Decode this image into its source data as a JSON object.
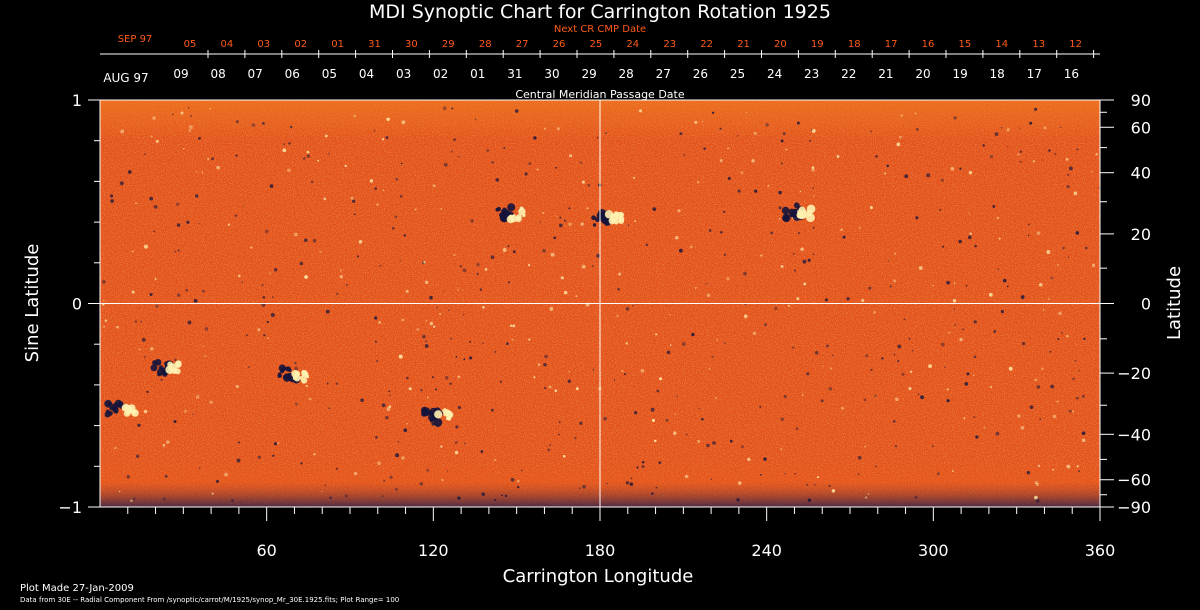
{
  "chart_data": {
    "type": "heatmap",
    "title": "MDI Synoptic Chart for Carrington Rotation 1925",
    "top_axis_label": "Next CR CMP Date",
    "bottom_date_axis_label": "Central Meridian Passage Date",
    "xlabel": "Carrington Longitude",
    "ylabel_left": "Sine Latitude",
    "ylabel_right": "Latitude",
    "xlim": [
      0,
      360
    ],
    "ylim": [
      -1,
      1
    ],
    "x_ticks": [
      "60",
      "120",
      "180",
      "240",
      "300",
      "360"
    ],
    "y_ticks_left": [
      "1",
      "0",
      "−1"
    ],
    "y_ticks_right": [
      "90",
      "60",
      "40",
      "20",
      "0",
      "−20",
      "−40",
      "−60",
      "−90"
    ],
    "next_cr_month_label": "SEP 97",
    "next_cr_dates": [
      "05",
      "04",
      "03",
      "02",
      "01",
      "31",
      "30",
      "29",
      "28",
      "27",
      "26",
      "25",
      "24",
      "23",
      "22",
      "21",
      "20",
      "19",
      "18",
      "17",
      "16",
      "15",
      "14",
      "13",
      "12"
    ],
    "cmp_month_label": "AUG 97",
    "cmp_dates": [
      "09",
      "08",
      "07",
      "06",
      "05",
      "04",
      "03",
      "02",
      "01",
      "31",
      "30",
      "29",
      "28",
      "27",
      "26",
      "25",
      "24",
      "23",
      "22",
      "21",
      "20",
      "19",
      "18",
      "17",
      "16"
    ],
    "colors": {
      "background": "#000000",
      "field": "#e8501a",
      "negative": "#14143c",
      "positive": "#fff2b0",
      "next_cr": "#ff5a1a"
    },
    "active_regions": [
      {
        "lon": 148,
        "sinlat": 0.44,
        "polarity": "mixed"
      },
      {
        "lon": 183,
        "sinlat": 0.42,
        "polarity": "mixed"
      },
      {
        "lon": 252,
        "sinlat": 0.45,
        "polarity": "mixed"
      },
      {
        "lon": 24,
        "sinlat": -0.32,
        "polarity": "mixed"
      },
      {
        "lon": 70,
        "sinlat": -0.35,
        "polarity": "mixed"
      },
      {
        "lon": 122,
        "sinlat": -0.55,
        "polarity": "mixed"
      },
      {
        "lon": 8,
        "sinlat": -0.52,
        "polarity": "mixed"
      }
    ],
    "grid": false
  },
  "footer": {
    "plot_made": "Plot Made 27-Jan-2009",
    "data_source": "Data from 30E -- Radial Component From /synoptic/carrot/M/1925/synop_Mr_30E.1925.fits; Plot Range=  100"
  }
}
